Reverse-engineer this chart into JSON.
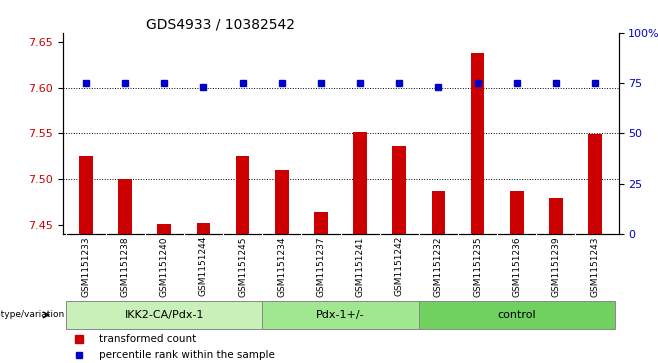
{
  "title": "GDS4933 / 10382542",
  "samples": [
    "GSM1151233",
    "GSM1151238",
    "GSM1151240",
    "GSM1151244",
    "GSM1151245",
    "GSM1151234",
    "GSM1151237",
    "GSM1151241",
    "GSM1151242",
    "GSM1151232",
    "GSM1151235",
    "GSM1151236",
    "GSM1151239",
    "GSM1151243"
  ],
  "red_values": [
    7.525,
    7.5,
    7.451,
    7.452,
    7.525,
    7.51,
    7.464,
    7.552,
    7.536,
    7.487,
    7.638,
    7.487,
    7.479,
    7.549
  ],
  "blue_values": [
    75,
    75,
    75,
    73,
    75,
    75,
    75,
    75,
    75,
    73,
    75,
    75,
    75,
    75
  ],
  "groups": [
    {
      "label": "IKK2-CA/Pdx-1",
      "start": 0,
      "end": 5,
      "color": "#c8f0b8"
    },
    {
      "label": "Pdx-1+/-",
      "start": 5,
      "end": 9,
      "color": "#a0e890"
    },
    {
      "label": "control",
      "start": 9,
      "end": 14,
      "color": "#70d060"
    }
  ],
  "ylim_left": [
    7.44,
    7.66
  ],
  "ylim_right": [
    0,
    100
  ],
  "yticks_left": [
    7.45,
    7.5,
    7.55,
    7.6,
    7.65
  ],
  "yticks_right": [
    0,
    25,
    50,
    75,
    100
  ],
  "ytick_labels_right": [
    "0",
    "25",
    "50",
    "75",
    "100%"
  ],
  "hlines": [
    7.5,
    7.55,
    7.6
  ],
  "bar_color": "#cc0000",
  "dot_color": "#0000cc",
  "xlabel_group": "genotype/variation",
  "legend_red": "transformed count",
  "legend_blue": "percentile rank within the sample",
  "plot_bg": "#ffffff",
  "tick_area_bg": "#d8d8d8",
  "bar_width": 0.35
}
